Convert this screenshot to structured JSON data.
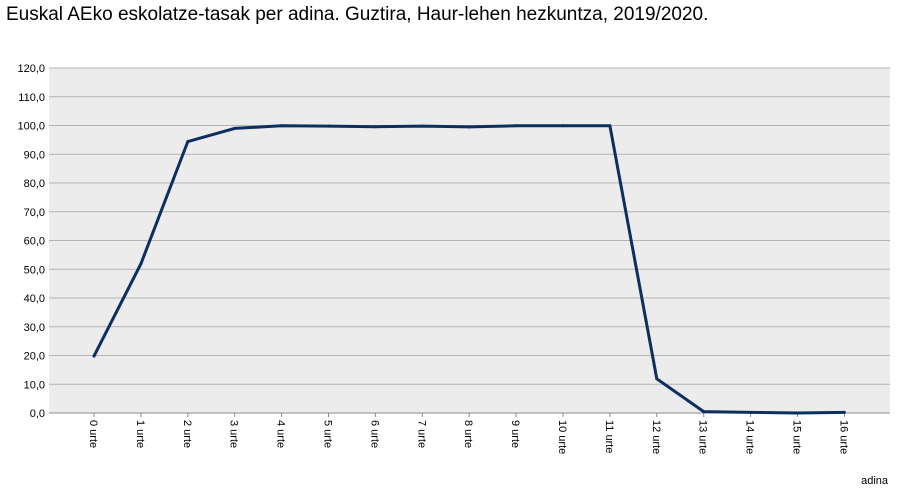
{
  "chart_data": {
    "type": "line",
    "title": "Euskal AEko eskolatze-tasak per adina. Guztira, Haur-lehen hezkuntza, 2019/2020.",
    "xlabel": "adina",
    "ylabel": "",
    "categories": [
      "0 urte",
      "1 urte",
      "2 urte",
      "3 urte",
      "4 urte",
      "5 urte",
      "6 urte",
      "7 urte",
      "8 urte",
      "9 urte",
      "10 urte",
      "11 urte",
      "12 urte",
      "13 urte",
      "14 urte",
      "15 urte",
      "16 urte"
    ],
    "series": [
      {
        "values": [
          19.8,
          51.9,
          94.4,
          99.0,
          99.9,
          99.8,
          99.6,
          99.8,
          99.5,
          99.9,
          99.9,
          99.9,
          11.9,
          0.5,
          0.2,
          0.0,
          0.2
        ]
      }
    ],
    "ylim": [
      0,
      120
    ],
    "yticks": [
      "0,0",
      "10,0",
      "20,0",
      "30,0",
      "40,0",
      "50,0",
      "60,0",
      "70,0",
      "80,0",
      "90,0",
      "100,0",
      "110,0",
      "120,0"
    ],
    "grid": true,
    "colors": {
      "line": "#0d2f5f",
      "plot_bg": "#ececec",
      "grid": "#b3b3b3"
    }
  }
}
